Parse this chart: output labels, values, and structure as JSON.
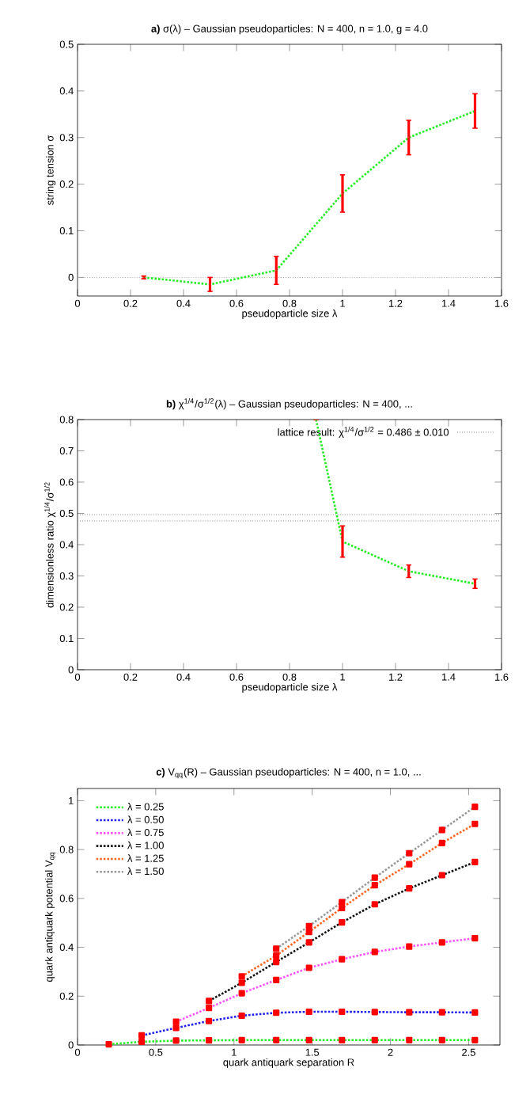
{
  "chart_data": [
    {
      "type": "line",
      "title": "**a)**  σ(λ)  –  Gaussian pseudoparticles: N = 400, n = 1.0, g = 4.0",
      "xlabel": "pseudoparticle size λ",
      "ylabel": "string tension σ",
      "xlim": [
        0,
        1.6
      ],
      "ylim": [
        -0.04,
        0.5
      ],
      "xticks": [
        0,
        0.2,
        0.4,
        0.6,
        0.8,
        1,
        1.2,
        1.4,
        1.6
      ],
      "yticks": [
        0,
        0.1,
        0.2,
        0.3,
        0.4,
        0.5
      ],
      "x": [
        0.25,
        0.5,
        0.75,
        1.0,
        1.25,
        1.5
      ],
      "line_style": "dotted",
      "ref_lines": [
        {
          "axis": "y",
          "value": 0,
          "color": "#aaaaaa",
          "line_style": "dotted"
        }
      ],
      "series": [
        {
          "color": "#22ee22",
          "values": [
            0,
            -0.015,
            0.015,
            0.18,
            0.3,
            0.357
          ],
          "errors": [
            0.003,
            0.015,
            0.03,
            0.04,
            0.037,
            0.037
          ]
        }
      ]
    },
    {
      "type": "line",
      "title": "**b)**  χ$^{1/4}$/σ$^{1/2}$(λ)  –  Gaussian pseudoparticles: N = 400, ...",
      "xlabel": "pseudoparticle size λ",
      "ylabel": "dimensionless ratio χ$^{1/4}$/σ$^{1/2}$",
      "xlim": [
        0,
        1.6
      ],
      "ylim": [
        0,
        0.8
      ],
      "xticks": [
        0,
        0.2,
        0.4,
        0.6,
        0.8,
        1,
        1.2,
        1.4,
        1.6
      ],
      "yticks": [
        0,
        0.1,
        0.2,
        0.3,
        0.4,
        0.5,
        0.6,
        0.7,
        0.8
      ],
      "line_style": "dotted",
      "annotations": [
        "lattice result: χ$^{1/4}$/σ$^{1/2}$ = 0.486 ± 0.010"
      ],
      "ref_lines": [
        {
          "axis": "y",
          "value": 0.496,
          "color": "#888888",
          "line_style": "dotted"
        },
        {
          "axis": "y",
          "value": 0.476,
          "color": "#888888",
          "line_style": "dotted"
        }
      ],
      "series": [
        {
          "color": "#22ee22",
          "x": [
            0.9,
            1.0,
            1.25,
            1.5
          ],
          "values": [
            0.8,
            0.41,
            0.315,
            0.275
          ],
          "errors": [
            null,
            0.05,
            0.02,
            0.015
          ]
        }
      ]
    },
    {
      "type": "line",
      "title": "**c)**  V$_{qq}$(R)  –  Gaussian pseudoparticles: N = 400, n = 1.0, ...",
      "xlabel": "quark antiquark separation R",
      "ylabel": "quark antiquark potential V$_{qq}$",
      "xlim": [
        0,
        2.7
      ],
      "ylim": [
        0,
        1.05
      ],
      "xticks": [
        0,
        0.5,
        1,
        1.5,
        2,
        2.5
      ],
      "yticks": [
        0,
        0.2,
        0.4,
        0.6,
        0.8,
        1
      ],
      "line_style": "dotted",
      "marker": "square",
      "legend": "top left",
      "x": [
        0.2,
        0.41,
        0.63,
        0.84,
        1.05,
        1.27,
        1.48,
        1.69,
        1.9,
        2.12,
        2.33,
        2.54
      ],
      "series": [
        {
          "name": "λ = 0.25",
          "color": "#22ee22",
          "values": [
            0.003,
            0.013,
            0.018,
            0.019,
            0.02,
            0.02,
            0.02,
            0.02,
            0.02,
            0.02,
            0.02,
            0.02
          ]
        },
        {
          "name": "λ = 0.50",
          "color": "#2222ee",
          "values": [
            null,
            0.039,
            0.07,
            0.098,
            0.12,
            0.132,
            0.136,
            0.136,
            0.135,
            0.134,
            0.134,
            0.133
          ]
        },
        {
          "name": "λ = 0.75",
          "color": "#ff55ff",
          "values": [
            null,
            null,
            0.095,
            0.152,
            0.212,
            0.266,
            0.316,
            0.351,
            0.381,
            0.403,
            0.42,
            0.437
          ]
        },
        {
          "name": "λ = 1.00",
          "color": "#111111",
          "values": [
            null,
            null,
            null,
            0.18,
            0.255,
            0.34,
            0.42,
            0.502,
            0.576,
            0.641,
            0.695,
            0.749
          ]
        },
        {
          "name": "λ = 1.25",
          "color": "#ff6622",
          "values": [
            null,
            null,
            null,
            null,
            0.281,
            0.366,
            0.463,
            0.561,
            0.654,
            0.74,
            0.827,
            0.905
          ]
        },
        {
          "name": "λ = 1.50",
          "color": "#999999",
          "values": [
            null,
            null,
            null,
            null,
            null,
            0.394,
            0.487,
            0.585,
            0.685,
            0.785,
            0.88,
            0.975
          ]
        }
      ]
    }
  ]
}
